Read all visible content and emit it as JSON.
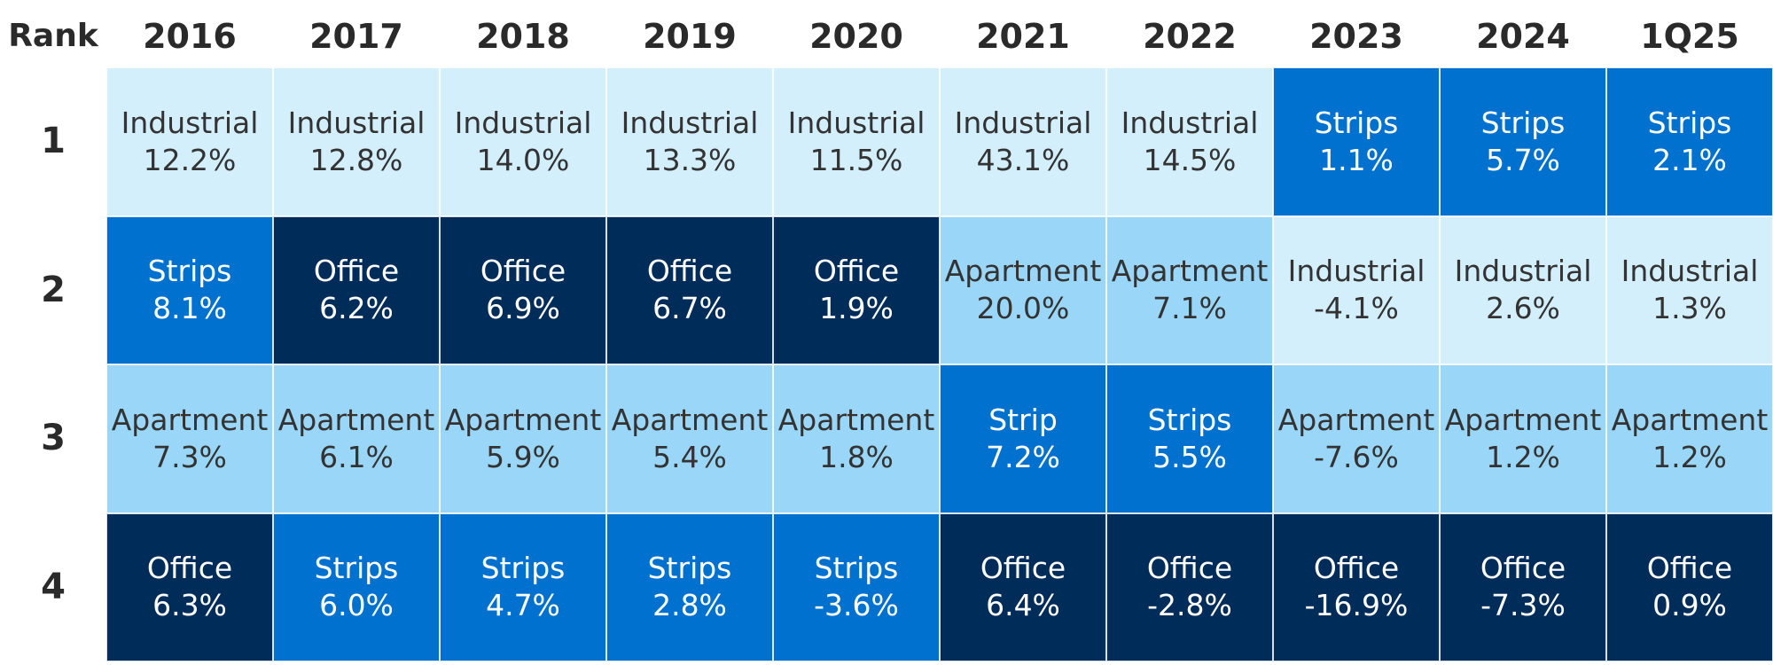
{
  "chart_data": {
    "type": "table",
    "corner_label": "Rank",
    "columns": [
      "2016",
      "2017",
      "2018",
      "2019",
      "2020",
      "2021",
      "2022",
      "2023",
      "2024",
      "1Q25"
    ],
    "ranks": [
      "1",
      "2",
      "3",
      "4"
    ],
    "cells": [
      [
        {
          "sector": "Industrial",
          "value": "12.2%"
        },
        {
          "sector": "Strips",
          "value": "8.1%"
        },
        {
          "sector": "Apartment",
          "value": "7.3%"
        },
        {
          "sector": "Office",
          "value": "6.3%"
        }
      ],
      [
        {
          "sector": "Industrial",
          "value": "12.8%"
        },
        {
          "sector": "Office",
          "value": "6.2%"
        },
        {
          "sector": "Apartment",
          "value": "6.1%"
        },
        {
          "sector": "Strips",
          "value": "6.0%"
        }
      ],
      [
        {
          "sector": "Industrial",
          "value": "14.0%"
        },
        {
          "sector": "Office",
          "value": "6.9%"
        },
        {
          "sector": "Apartment",
          "value": "5.9%"
        },
        {
          "sector": "Strips",
          "value": "4.7%"
        }
      ],
      [
        {
          "sector": "Industrial",
          "value": "13.3%"
        },
        {
          "sector": "Office",
          "value": "6.7%"
        },
        {
          "sector": "Apartment",
          "value": "5.4%"
        },
        {
          "sector": "Strips",
          "value": "2.8%"
        }
      ],
      [
        {
          "sector": "Industrial",
          "value": "11.5%"
        },
        {
          "sector": "Office",
          "value": "1.9%"
        },
        {
          "sector": "Apartment",
          "value": "1.8%"
        },
        {
          "sector": "Strips",
          "value": "-3.6%"
        }
      ],
      [
        {
          "sector": "Industrial",
          "value": "43.1%"
        },
        {
          "sector": "Apartment",
          "value": "20.0%"
        },
        {
          "sector": "Strip",
          "value": "7.2%"
        },
        {
          "sector": "Office",
          "value": "6.4%"
        }
      ],
      [
        {
          "sector": "Industrial",
          "value": "14.5%"
        },
        {
          "sector": "Apartment",
          "value": "7.1%"
        },
        {
          "sector": "Strips",
          "value": "5.5%"
        },
        {
          "sector": "Office",
          "value": "-2.8%"
        }
      ],
      [
        {
          "sector": "Strips",
          "value": "1.1%"
        },
        {
          "sector": "Industrial",
          "value": "-4.1%"
        },
        {
          "sector": "Apartment",
          "value": "-7.6%"
        },
        {
          "sector": "Office",
          "value": "-16.9%"
        }
      ],
      [
        {
          "sector": "Strips",
          "value": "5.7%"
        },
        {
          "sector": "Industrial",
          "value": "2.6%"
        },
        {
          "sector": "Apartment",
          "value": "1.2%"
        },
        {
          "sector": "Office",
          "value": "-7.3%"
        }
      ],
      [
        {
          "sector": "Strips",
          "value": "2.1%"
        },
        {
          "sector": "Industrial",
          "value": "1.3%"
        },
        {
          "sector": "Apartment",
          "value": "1.2%"
        },
        {
          "sector": "Office",
          "value": "0.9%"
        }
      ]
    ],
    "sector_colors": {
      "Industrial": {
        "bg": "#d3effb",
        "fg": "#333333"
      },
      "Apartment": {
        "bg": "#99d6f8",
        "fg": "#333333"
      },
      "Strips": {
        "bg": "#0071ce",
        "fg": "#ffffff"
      },
      "Strip": {
        "bg": "#0071ce",
        "fg": "#ffffff"
      },
      "Office": {
        "bg": "#002c5a",
        "fg": "#ffffff"
      }
    }
  }
}
